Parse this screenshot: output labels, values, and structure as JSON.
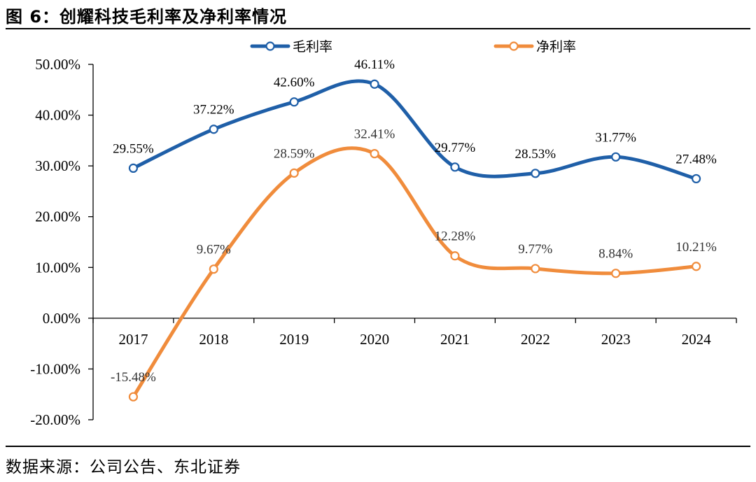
{
  "figure": {
    "title": "图 6：创耀科技毛利率及净利率情况",
    "source": "数据来源：公司公告、东北证券"
  },
  "chart_data": {
    "type": "line",
    "categories": [
      "2017",
      "2018",
      "2019",
      "2020",
      "2021",
      "2022",
      "2023",
      "2024"
    ],
    "series": [
      {
        "name": "毛利率",
        "color": "#1f5fa8",
        "values": [
          29.55,
          37.22,
          42.6,
          46.11,
          29.77,
          28.53,
          31.77,
          27.48
        ],
        "labels": [
          "29.55%",
          "37.22%",
          "42.60%",
          "46.11%",
          "29.77%",
          "28.53%",
          "31.77%",
          "27.48%"
        ]
      },
      {
        "name": "净利率",
        "color": "#f08c3c",
        "values": [
          -15.48,
          9.67,
          28.59,
          32.41,
          12.28,
          9.77,
          8.84,
          10.21
        ],
        "labels": [
          "-15.48%",
          "9.67%",
          "28.59%",
          "32.41%",
          "12.28%",
          "9.77%",
          "8.84%",
          "10.21%"
        ]
      }
    ],
    "y_ticks": [
      "50.00%",
      "40.00%",
      "30.00%",
      "20.00%",
      "10.00%",
      "0.00%",
      "-10.00%",
      "-20.00%"
    ],
    "y_tick_values": [
      50,
      40,
      30,
      20,
      10,
      0,
      -10,
      -20
    ],
    "ylim": [
      -20,
      50
    ],
    "grid": false,
    "legend_position": "top"
  }
}
